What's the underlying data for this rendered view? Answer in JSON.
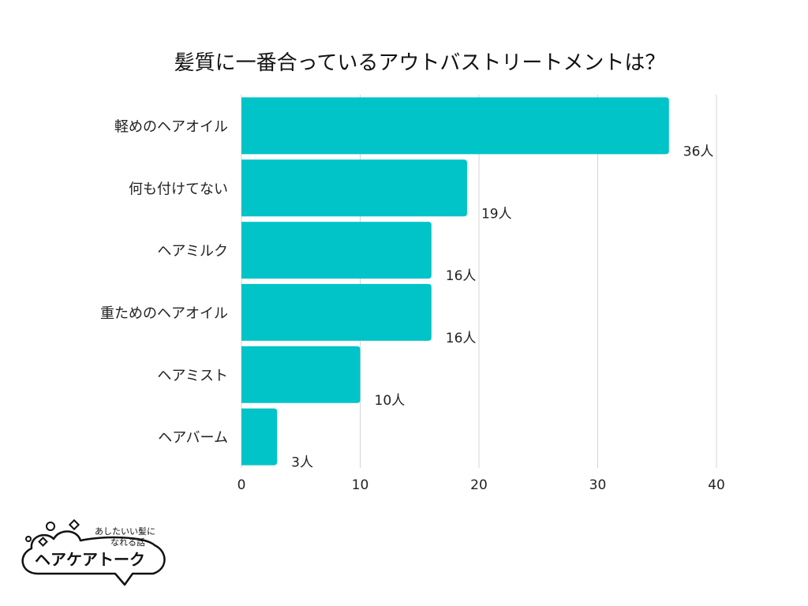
{
  "chart_data": {
    "type": "bar",
    "orientation": "horizontal",
    "title": "髪質に一番合っているアウトバストリートメントは？",
    "categories": [
      "軽めのヘアオイル",
      "何も付けてない",
      "ヘアミルク",
      "重ためのヘアオイル",
      "ヘアミスト",
      "ヘアバーム"
    ],
    "values": [
      36,
      19,
      16,
      16,
      10,
      3
    ],
    "value_labels": [
      "36人",
      "19人",
      "16人",
      "16人",
      "10人",
      "3人"
    ],
    "xlim": [
      0,
      40
    ],
    "xticks": [
      0,
      10,
      20,
      30,
      40
    ],
    "xtick_labels": [
      "0",
      "10",
      "20",
      "30",
      "40"
    ],
    "grid": true,
    "bar_color": "#00c4c8",
    "grid_color": "#d4d4d4"
  },
  "logo": {
    "line1": "あしたいい髪に",
    "line2": "なれる話",
    "brand": "ヘアケアトーク"
  }
}
